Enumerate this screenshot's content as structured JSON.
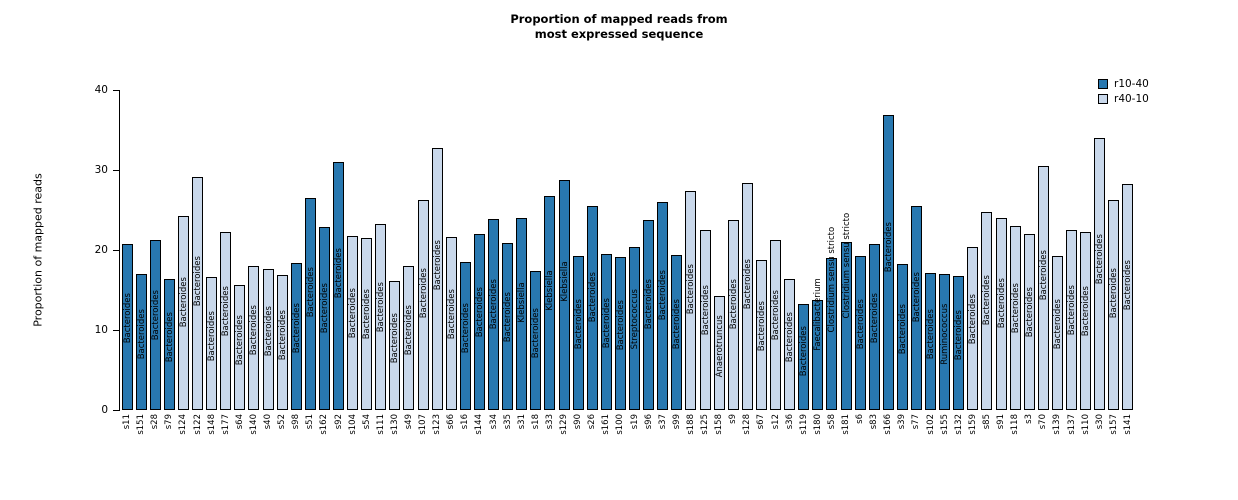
{
  "title": {
    "line1": "Proportion of mapped reads from",
    "line2": "most expressed sequence"
  },
  "axes": {
    "y_label": "Proportion of mapped reads",
    "y_ticks": [
      0,
      10,
      20,
      30,
      40
    ],
    "y_max": 40
  },
  "chart_data": {
    "type": "bar",
    "title": "Proportion of mapped reads from most expressed sequence",
    "xlabel": "",
    "ylabel": "Proportion of mapped reads",
    "ylim": [
      0,
      40
    ],
    "grid": false,
    "legend_position": "top-right",
    "series": [
      {
        "name": "r10-40",
        "color": "#2878B0"
      },
      {
        "name": "r40-10",
        "color": "#C9D8EB"
      }
    ],
    "bars": [
      {
        "sample": "s11",
        "value": 20.7,
        "series": "r10-40",
        "taxon": "Bacteroides"
      },
      {
        "sample": "s151",
        "value": 17.0,
        "series": "r10-40",
        "taxon": "Bacteroides"
      },
      {
        "sample": "s28",
        "value": 21.2,
        "series": "r10-40",
        "taxon": "Bacteroides"
      },
      {
        "sample": "s79",
        "value": 16.4,
        "series": "r10-40",
        "taxon": "Bacteroides"
      },
      {
        "sample": "s124",
        "value": 24.2,
        "series": "r40-10",
        "taxon": "Bacteroides"
      },
      {
        "sample": "s122",
        "value": 29.1,
        "series": "r40-10",
        "taxon": "Bacteroides"
      },
      {
        "sample": "s148",
        "value": 16.6,
        "series": "r40-10",
        "taxon": "Bacteroides"
      },
      {
        "sample": "s177",
        "value": 22.3,
        "series": "r40-10",
        "taxon": "Bacteroides"
      },
      {
        "sample": "s64",
        "value": 15.6,
        "series": "r40-10",
        "taxon": "Bacteroides"
      },
      {
        "sample": "s140",
        "value": 18.0,
        "series": "r40-10",
        "taxon": "Bacteroides"
      },
      {
        "sample": "s40",
        "value": 17.6,
        "series": "r40-10",
        "taxon": "Bacteroides"
      },
      {
        "sample": "s52",
        "value": 16.9,
        "series": "r40-10",
        "taxon": "Bacteroides"
      },
      {
        "sample": "s98",
        "value": 18.4,
        "series": "r10-40",
        "taxon": "Bacteroides"
      },
      {
        "sample": "s51",
        "value": 26.5,
        "series": "r10-40",
        "taxon": "Bacteroides"
      },
      {
        "sample": "s162",
        "value": 22.9,
        "series": "r10-40",
        "taxon": "Bacteroides"
      },
      {
        "sample": "s92",
        "value": 31.0,
        "series": "r10-40",
        "taxon": "Bacteroides"
      },
      {
        "sample": "s104",
        "value": 21.8,
        "series": "r40-10",
        "taxon": "Bacteroides"
      },
      {
        "sample": "s54",
        "value": 21.5,
        "series": "r40-10",
        "taxon": "Bacteroides"
      },
      {
        "sample": "s111",
        "value": 23.2,
        "series": "r40-10",
        "taxon": "Bacteroides"
      },
      {
        "sample": "s130",
        "value": 16.1,
        "series": "r40-10",
        "taxon": "Bacteroides"
      },
      {
        "sample": "s49",
        "value": 18.0,
        "series": "r40-10",
        "taxon": "Bacteroides"
      },
      {
        "sample": "s107",
        "value": 26.2,
        "series": "r40-10",
        "taxon": "Bacteroides"
      },
      {
        "sample": "s123",
        "value": 32.8,
        "series": "r40-10",
        "taxon": "Bacteroides"
      },
      {
        "sample": "s66",
        "value": 21.6,
        "series": "r40-10",
        "taxon": "Bacteroides"
      },
      {
        "sample": "s16",
        "value": 18.5,
        "series": "r10-40",
        "taxon": "Bacteroides"
      },
      {
        "sample": "s144",
        "value": 22.0,
        "series": "r10-40",
        "taxon": "Bacteroides"
      },
      {
        "sample": "s34",
        "value": 23.9,
        "series": "r10-40",
        "taxon": "Bacteroides"
      },
      {
        "sample": "s35",
        "value": 20.9,
        "series": "r10-40",
        "taxon": "Bacteroides"
      },
      {
        "sample": "s31",
        "value": 24.0,
        "series": "r10-40",
        "taxon": "Klebsiella"
      },
      {
        "sample": "s18",
        "value": 17.4,
        "series": "r10-40",
        "taxon": "Bacteroides"
      },
      {
        "sample": "s33",
        "value": 26.8,
        "series": "r10-40",
        "taxon": "Klebsiella"
      },
      {
        "sample": "s129",
        "value": 28.7,
        "series": "r10-40",
        "taxon": "Klebsiella"
      },
      {
        "sample": "s90",
        "value": 19.3,
        "series": "r10-40",
        "taxon": "Bacteroides"
      },
      {
        "sample": "s26",
        "value": 25.5,
        "series": "r10-40",
        "taxon": "Bacteroides"
      },
      {
        "sample": "s161",
        "value": 19.5,
        "series": "r10-40",
        "taxon": "Bacteroides"
      },
      {
        "sample": "s100",
        "value": 19.1,
        "series": "r10-40",
        "taxon": "Bacteroides"
      },
      {
        "sample": "s19",
        "value": 20.4,
        "series": "r10-40",
        "taxon": "Streptococcus"
      },
      {
        "sample": "s96",
        "value": 23.8,
        "series": "r10-40",
        "taxon": "Bacteroides"
      },
      {
        "sample": "s37",
        "value": 26.0,
        "series": "r10-40",
        "taxon": "Bacteroides"
      },
      {
        "sample": "s99",
        "value": 19.4,
        "series": "r10-40",
        "taxon": "Bacteroides"
      },
      {
        "sample": "s188",
        "value": 27.4,
        "series": "r40-10",
        "taxon": "Bacteroides"
      },
      {
        "sample": "s125",
        "value": 22.5,
        "series": "r40-10",
        "taxon": "Bacteroides"
      },
      {
        "sample": "s158",
        "value": 14.2,
        "series": "r40-10",
        "taxon": "Anaerotruncus"
      },
      {
        "sample": "s9",
        "value": 23.8,
        "series": "r40-10",
        "taxon": "Bacteroides"
      },
      {
        "sample": "s128",
        "value": 28.4,
        "series": "r40-10",
        "taxon": "Bacteroides"
      },
      {
        "sample": "s67",
        "value": 18.8,
        "series": "r40-10",
        "taxon": "Bacteroides"
      },
      {
        "sample": "s12",
        "value": 21.2,
        "series": "r40-10",
        "taxon": "Bacteroides"
      },
      {
        "sample": "s36",
        "value": 16.4,
        "series": "r40-10",
        "taxon": "Bacteroides"
      },
      {
        "sample": "s119",
        "value": 13.2,
        "series": "r10-40",
        "taxon": "Bacteroides"
      },
      {
        "sample": "s180",
        "value": 13.8,
        "series": "r10-40",
        "taxon": "Faecalibacterium"
      },
      {
        "sample": "s58",
        "value": 19.0,
        "series": "r10-40",
        "taxon": "Clostridium sensu stricto"
      },
      {
        "sample": "s181",
        "value": 21.0,
        "series": "r10-40",
        "taxon": "Clostridium sensu stricto"
      },
      {
        "sample": "s6",
        "value": 19.3,
        "series": "r10-40",
        "taxon": "Bacteroides"
      },
      {
        "sample": "s83",
        "value": 20.7,
        "series": "r10-40",
        "taxon": "Bacteroides"
      },
      {
        "sample": "s166",
        "value": 36.9,
        "series": "r10-40",
        "taxon": "Bacteroides"
      },
      {
        "sample": "s39",
        "value": 18.2,
        "series": "r10-40",
        "taxon": "Bacteroides"
      },
      {
        "sample": "s77",
        "value": 25.5,
        "series": "r10-40",
        "taxon": "Bacteroides"
      },
      {
        "sample": "s102",
        "value": 17.1,
        "series": "r10-40",
        "taxon": "Bacteroides"
      },
      {
        "sample": "s155",
        "value": 17.0,
        "series": "r10-40",
        "taxon": "Ruminococcus"
      },
      {
        "sample": "s132",
        "value": 16.8,
        "series": "r10-40",
        "taxon": "Bacteroides"
      },
      {
        "sample": "s159",
        "value": 20.4,
        "series": "r40-10",
        "taxon": "Bacteroides"
      },
      {
        "sample": "s85",
        "value": 24.8,
        "series": "r40-10",
        "taxon": "Bacteroides"
      },
      {
        "sample": "s91",
        "value": 24.0,
        "series": "r40-10",
        "taxon": "Bacteroides"
      },
      {
        "sample": "s118",
        "value": 23.0,
        "series": "r40-10",
        "taxon": "Bacteroides"
      },
      {
        "sample": "s3",
        "value": 22.0,
        "series": "r40-10",
        "taxon": "Bacteroides"
      },
      {
        "sample": "s70",
        "value": 30.5,
        "series": "r40-10",
        "taxon": "Bacteroides"
      },
      {
        "sample": "s139",
        "value": 19.2,
        "series": "r40-10",
        "taxon": "Bacteroides"
      },
      {
        "sample": "s137",
        "value": 22.5,
        "series": "r40-10",
        "taxon": "Bacteroides"
      },
      {
        "sample": "s110",
        "value": 22.3,
        "series": "r40-10",
        "taxon": "Bacteroides"
      },
      {
        "sample": "s30",
        "value": 34.0,
        "series": "r40-10",
        "taxon": "Bacteroides"
      },
      {
        "sample": "s157",
        "value": 26.3,
        "series": "r40-10",
        "taxon": "Bacteroides"
      },
      {
        "sample": "s141",
        "value": 28.3,
        "series": "r40-10",
        "taxon": "Bacteroides"
      }
    ]
  }
}
